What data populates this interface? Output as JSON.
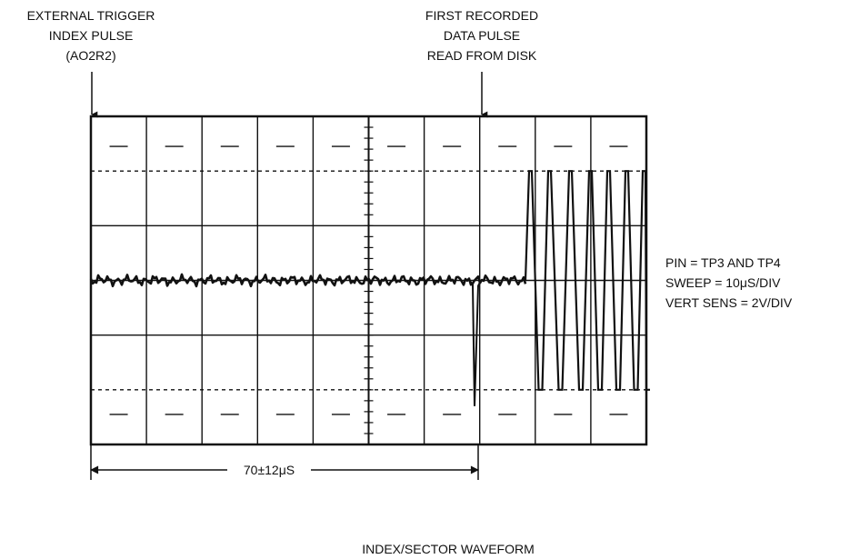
{
  "labels": {
    "trigger": [
      "EXTERNAL TRIGGER",
      "INDEX PULSE",
      "(AO2R2)"
    ],
    "first_pulse": [
      "FIRST RECORDED",
      "DATA PULSE",
      "READ FROM DISK"
    ],
    "settings": [
      "PIN = TP3 AND TP4",
      "SWEEP = 10μS/DIV",
      "VERT SENS = 2V/DIV"
    ],
    "interval": "70±12μS",
    "caption": "INDEX/SECTOR WAVEFORM"
  },
  "scope": {
    "divisions_x": 10,
    "divisions_y": 6,
    "sweep_us_per_div": 10,
    "vert_v_per_div": 2,
    "interval_nominal_us": 70,
    "interval_tolerance_us": 12
  },
  "colors": {
    "ink": "#111111",
    "background": "#ffffff"
  }
}
